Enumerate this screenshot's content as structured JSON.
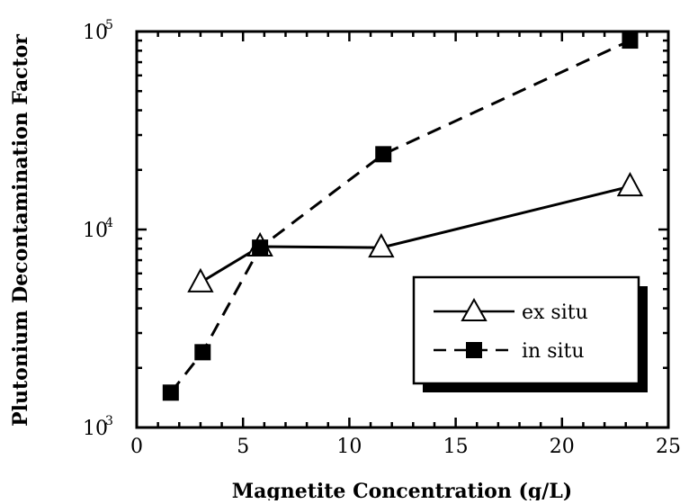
{
  "chart_data": {
    "type": "line",
    "title": "",
    "xlabel": "Magnetite Concentration (g/L)",
    "ylabel": "Plutonium Decontamination Factor",
    "xlim": [
      0,
      25
    ],
    "ylim": [
      1000,
      100000
    ],
    "y_scale": "log",
    "x_ticks": [
      0,
      5,
      10,
      15,
      20,
      25
    ],
    "x_tick_labels": [
      "0",
      "5",
      "10",
      "15",
      "20",
      "25"
    ],
    "y_ticks": [
      1000,
      10000,
      100000
    ],
    "y_tick_labels": [
      {
        "base": "10",
        "exp": "3"
      },
      {
        "base": "10",
        "exp": "4"
      },
      {
        "base": "10",
        "exp": "5"
      }
    ],
    "grid": false,
    "legend_position": "bottom-right",
    "series": [
      {
        "name": "ex situ",
        "marker": "open-triangle",
        "line_style": "solid",
        "x": [
          3.0,
          5.8,
          11.5,
          23.2
        ],
        "y": [
          5400,
          8200,
          8100,
          16500
        ]
      },
      {
        "name": "in situ",
        "marker": "filled-square",
        "line_style": "dashed",
        "x": [
          1.6,
          3.1,
          5.8,
          11.6,
          23.2
        ],
        "y": [
          1500,
          2400,
          8100,
          24000,
          90000
        ]
      }
    ]
  }
}
